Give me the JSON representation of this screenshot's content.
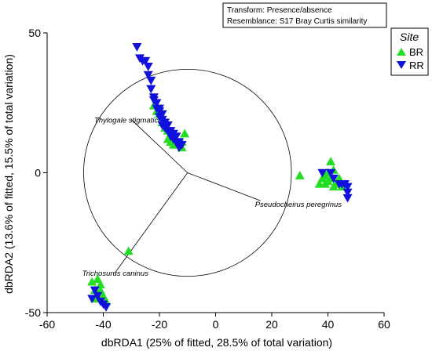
{
  "chart_data": {
    "type": "scatter",
    "xlabel": "dbRDA1 (25% of fitted, 28.5% of total variation)",
    "ylabel": "dbRDA2 (13.6% of fitted, 15.5% of total variation)",
    "xlim": [
      -60,
      60
    ],
    "ylim": [
      -50,
      50
    ],
    "xticks": [
      "-60",
      "-40",
      "-20",
      "0",
      "20",
      "40",
      "60"
    ],
    "yticks": [
      "50",
      "0",
      "-50"
    ],
    "info_box": [
      "Transform: Presence/absence",
      "Resemblance: S17 Bray Curtis similarity"
    ],
    "legend": {
      "title": "Site",
      "position": "top-right",
      "entries": [
        {
          "label": "BR",
          "color": "#22dd22",
          "marker": "triangle-up"
        },
        {
          "label": "RR",
          "color": "#1111dd",
          "marker": "triangle-down"
        }
      ]
    },
    "correlation_circle": {
      "center": [
        -10,
        0
      ],
      "radius": 37
    },
    "vectors": [
      {
        "label": "Thylogale stigmatica",
        "x": -20,
        "y": 19
      },
      {
        "label": "Pseudocheirus peregrinus",
        "x": 26,
        "y": -10
      },
      {
        "label": "Trichosurus caninus",
        "x": -26,
        "y": -36
      }
    ],
    "series": [
      {
        "name": "BR",
        "color": "#22dd22",
        "marker": "triangle-up",
        "points": [
          [
            -22,
            24
          ],
          [
            -21,
            22
          ],
          [
            -20,
            21
          ],
          [
            -19,
            20
          ],
          [
            -19,
            18
          ],
          [
            -18,
            18
          ],
          [
            -18,
            16
          ],
          [
            -17,
            15
          ],
          [
            -16,
            14
          ],
          [
            -16,
            12
          ],
          [
            -15,
            13
          ],
          [
            -14,
            12
          ],
          [
            -14,
            10
          ],
          [
            -13,
            10
          ],
          [
            -12,
            9
          ],
          [
            -11,
            14
          ],
          [
            -12,
            11
          ],
          [
            -15,
            10
          ],
          [
            -16,
            11
          ],
          [
            -17,
            12
          ],
          [
            30,
            -1
          ],
          [
            37,
            -4
          ],
          [
            38,
            -2
          ],
          [
            39,
            -4
          ],
          [
            39,
            -1
          ],
          [
            40,
            0
          ],
          [
            40,
            -3
          ],
          [
            41,
            4
          ],
          [
            41,
            -2
          ],
          [
            42,
            1
          ],
          [
            42,
            -5
          ],
          [
            43,
            -4
          ],
          [
            44,
            -4
          ],
          [
            44,
            -2
          ],
          [
            45,
            -5
          ],
          [
            46,
            -4
          ],
          [
            -31,
            -28
          ],
          [
            -44,
            -39
          ],
          [
            -43,
            -42
          ],
          [
            -42,
            -44
          ],
          [
            -41,
            -40
          ],
          [
            -41,
            -42
          ],
          [
            -40,
            -44
          ],
          [
            -39,
            -46
          ],
          [
            -43,
            -45
          ],
          [
            -42,
            -38
          ]
        ]
      },
      {
        "name": "RR",
        "color": "#1111dd",
        "marker": "triangle-down",
        "points": [
          [
            -28,
            45
          ],
          [
            -27,
            41
          ],
          [
            -26,
            40
          ],
          [
            -25,
            40
          ],
          [
            -24,
            38
          ],
          [
            -24,
            35
          ],
          [
            -23,
            33
          ],
          [
            -23,
            30
          ],
          [
            -22,
            27
          ],
          [
            -21,
            25
          ],
          [
            -21,
            23
          ],
          [
            -20,
            23
          ],
          [
            -20,
            20
          ],
          [
            -19,
            21
          ],
          [
            -19,
            19
          ],
          [
            -18,
            18
          ],
          [
            -18,
            16
          ],
          [
            -17,
            17
          ],
          [
            -17,
            15
          ],
          [
            -16,
            15
          ],
          [
            -16,
            13
          ],
          [
            -15,
            14
          ],
          [
            -15,
            12
          ],
          [
            -14,
            13
          ],
          [
            -14,
            11
          ],
          [
            -13,
            11
          ],
          [
            -13,
            9
          ],
          [
            -12,
            10
          ],
          [
            -22,
            26
          ],
          [
            -20,
            22
          ],
          [
            -19,
            17
          ],
          [
            38,
            0
          ],
          [
            41,
            0
          ],
          [
            42,
            -2
          ],
          [
            44,
            -4
          ],
          [
            45,
            -4
          ],
          [
            46,
            -4
          ],
          [
            47,
            -5
          ],
          [
            47,
            -7
          ],
          [
            47,
            -9
          ],
          [
            -44,
            -45
          ],
          [
            -43,
            -42
          ],
          [
            -42,
            -44
          ],
          [
            -41,
            -46
          ],
          [
            -40,
            -47
          ],
          [
            -39,
            -48
          ]
        ]
      }
    ]
  }
}
